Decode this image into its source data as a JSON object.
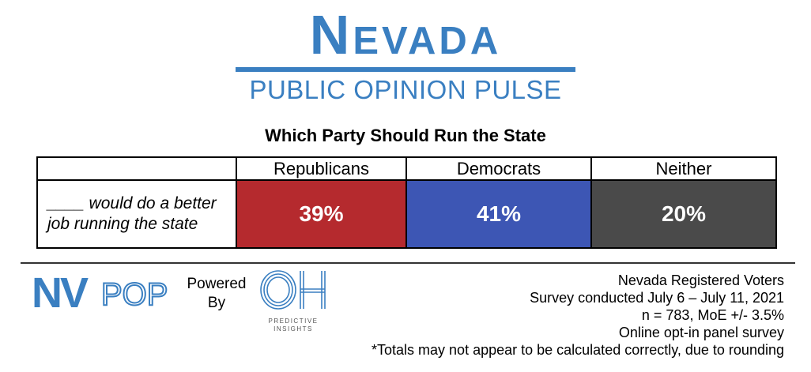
{
  "header": {
    "title": "Nevada",
    "subtitle": "PUBLIC OPINION PULSE",
    "brand_color": "#3a7fc1"
  },
  "chart_data": {
    "type": "table",
    "title": "Which Party Should Run the State",
    "categories": [
      "Republicans",
      "Democrats",
      "Neither"
    ],
    "series": [
      {
        "name": "____ would do a better job running the state",
        "values": [
          39,
          41,
          20
        ],
        "labels": [
          "39%",
          "41%",
          "20%"
        ]
      }
    ],
    "colors": [
      "#b52a2e",
      "#3d56b4",
      "#4a4a4a"
    ]
  },
  "footer": {
    "logo_text": "NVPOP",
    "powered_by": [
      "Powered",
      "By"
    ],
    "partner_logo": "OH",
    "partner_name": [
      "PREDICTIVE",
      "INSIGHTS"
    ],
    "notes": [
      "Nevada Registered Voters",
      "Survey conducted July 6 – July 11, 2021",
      "n = 783, MoE +/- 3.5%",
      "Online opt-in panel survey",
      "*Totals may not appear to be calculated correctly, due to rounding"
    ]
  }
}
